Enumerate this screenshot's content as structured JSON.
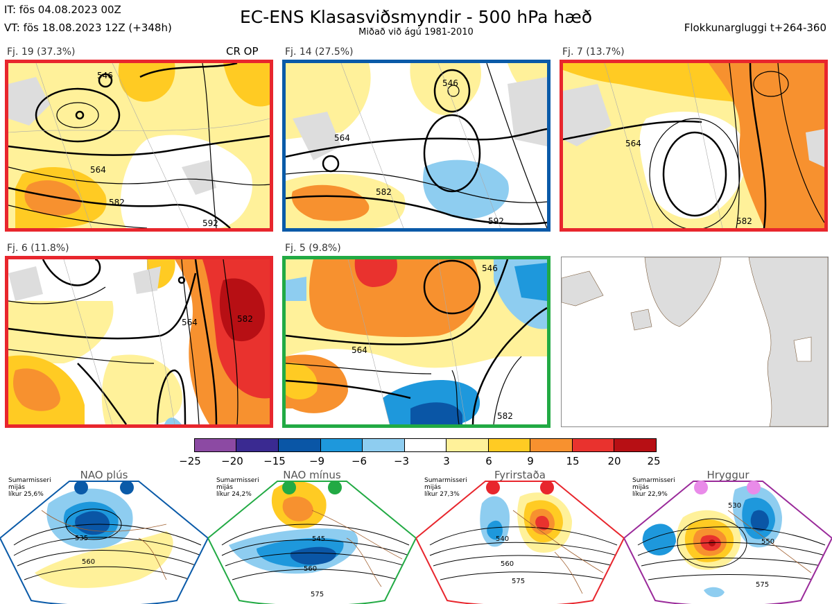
{
  "header": {
    "it_line": "IT: fös 04.08.2023 00Z",
    "vt_line": "VT: fös 18.08.2023 12Z  (+348h)",
    "title": "EC-ENS Klasasviðsmyndir - 500 hPa hæð",
    "subtitle": "Miðað við ágú 1981-2010",
    "window": "Flokkunargluggi t+264-360"
  },
  "panels": [
    {
      "label": "Fj. 19 (37.3%)",
      "tag": "CR OP",
      "border_color": "#e8262d",
      "contours": [
        "546",
        "564",
        "582",
        "592"
      ]
    },
    {
      "label": "Fj. 14 (27.5%)",
      "tag": "",
      "border_color": "#0a5aa8",
      "contours": [
        "546",
        "564",
        "582",
        "592"
      ]
    },
    {
      "label": "Fj. 7 (13.7%)",
      "tag": "",
      "border_color": "#e8262d",
      "contours": [
        "564",
        "582"
      ]
    },
    {
      "label": "Fj. 6 (11.8%)",
      "tag": "",
      "border_color": "#e8262d",
      "contours": [
        "564",
        "582"
      ]
    },
    {
      "label": "Fj. 5 (9.8%)",
      "tag": "",
      "border_color": "#22aa44",
      "contours": [
        "546",
        "564",
        "582"
      ]
    }
  ],
  "colorbar": {
    "ticks": [
      "−25",
      "−20",
      "−15",
      "−9",
      "−6",
      "−3",
      "3",
      "6",
      "9",
      "15",
      "20",
      "25"
    ],
    "colors": [
      "#8c4aa3",
      "#3a2a91",
      "#0a56a6",
      "#1e98dc",
      "#8ecdf0",
      "#ffffff",
      "#fff19a",
      "#ffcb23",
      "#f7912f",
      "#e9322e",
      "#b70f14"
    ]
  },
  "regimes": [
    {
      "name": "NAO plús",
      "season": "Sumarmisseri",
      "mean": "mijás",
      "prob": "líkur 25,6%",
      "color": "#0a5aa8",
      "contours": [
        "535",
        "560"
      ]
    },
    {
      "name": "NAO mínus",
      "season": "Sumarmisseri",
      "mean": "mijás",
      "prob": "líkur 24,2%",
      "color": "#22aa44",
      "contours": [
        "545",
        "560",
        "575"
      ]
    },
    {
      "name": "Fyrirstaða",
      "season": "Sumarmisseri",
      "mean": "mijás",
      "prob": "líkur 27,3%",
      "color": "#e8262d",
      "contours": [
        "540",
        "560",
        "575"
      ]
    },
    {
      "name": "Hryggur",
      "season": "Sumarmisseri",
      "mean": "mijás",
      "prob": "líkur 22,9%",
      "color": "#9a2a9a",
      "contours": [
        "530",
        "550",
        "575"
      ]
    }
  ]
}
